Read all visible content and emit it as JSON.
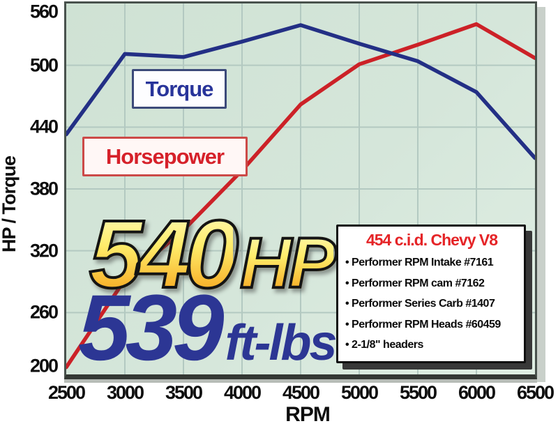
{
  "chart_data": {
    "type": "line",
    "x": [
      2500,
      3000,
      3500,
      4000,
      4500,
      5000,
      5500,
      6000,
      6500
    ],
    "series": [
      {
        "name": "Horsepower",
        "color": "#cc2127",
        "values": [
          207,
          292,
          340,
          398,
          462,
          501,
          520,
          540,
          507
        ]
      },
      {
        "name": "Torque",
        "color": "#232f85",
        "values": [
          433,
          511,
          508,
          523,
          539,
          521,
          504,
          474,
          410
        ]
      }
    ],
    "title": "",
    "xlabel": "RPM",
    "ylabel": "HP / Torque",
    "xlim": [
      2500,
      6500
    ],
    "ylim": [
      200,
      560
    ],
    "xticks": [
      "2500",
      "3000",
      "3500",
      "4000",
      "4500",
      "5000",
      "5500",
      "6000",
      "6500"
    ],
    "yticks": [
      "560",
      "500",
      "440",
      "380",
      "320",
      "260",
      "200"
    ],
    "grid": true,
    "legend_position": "in-plot boxed labels",
    "plot_background": "#d3e4d8",
    "grid_color": "#b3c9c1"
  },
  "series_labels": {
    "torque": "Torque",
    "horsepower": "Horsepower"
  },
  "peaks": {
    "hp_value": "540",
    "hp_unit": "HP",
    "torque_value": "539",
    "torque_unit": "ft-lbs"
  },
  "spec_box": {
    "title": "454 c.i.d. Chevy V8",
    "items": [
      "Performer RPM Intake #7161",
      "Performer RPM cam #7162",
      "Performer Series Carb #1407",
      "Performer RPM Heads #60459",
      "2-1/8\" headers"
    ]
  },
  "colors": {
    "torque_line": "#232f85",
    "horsepower_line": "#cc2127",
    "torque_label_text": "#28349a",
    "horsepower_label_text": "#d6212a",
    "spec_title_red": "#e52427",
    "peak_hp_gradient_top": "#fffcc4",
    "peak_hp_gradient_bottom": "#f6a71f",
    "peak_torque_blue": "#2c3694",
    "plot_background": "#d3e4d8",
    "gridline": "#b3c9c1"
  }
}
